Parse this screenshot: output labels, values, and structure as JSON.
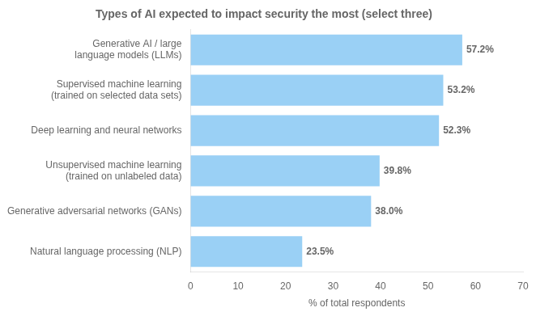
{
  "chart_data": {
    "type": "bar",
    "orientation": "horizontal",
    "title": "Types of AI expected to impact security the most (select three)",
    "categories": [
      "Natural language processing (NLP)",
      "Generative adversarial networks (GANs)",
      "Unsupervised machine learning\n(trained on unlabeled data)",
      "Deep learning and neural networks",
      "Supervised machine learning\n(trained on selected data sets)",
      "Generative AI / large\nlanguage models (LLMs)"
    ],
    "values": [
      23.5,
      38.0,
      39.8,
      52.3,
      53.2,
      57.2
    ],
    "value_labels": [
      "23.5%",
      "38.0%",
      "39.8%",
      "52.3%",
      "53.2%",
      "57.2%"
    ],
    "data_labels": true,
    "xlabel": "% of total respondents",
    "xlim": [
      0,
      70
    ],
    "xticks": [
      0,
      10,
      20,
      30,
      40,
      50,
      60,
      70
    ],
    "grid": false
  }
}
